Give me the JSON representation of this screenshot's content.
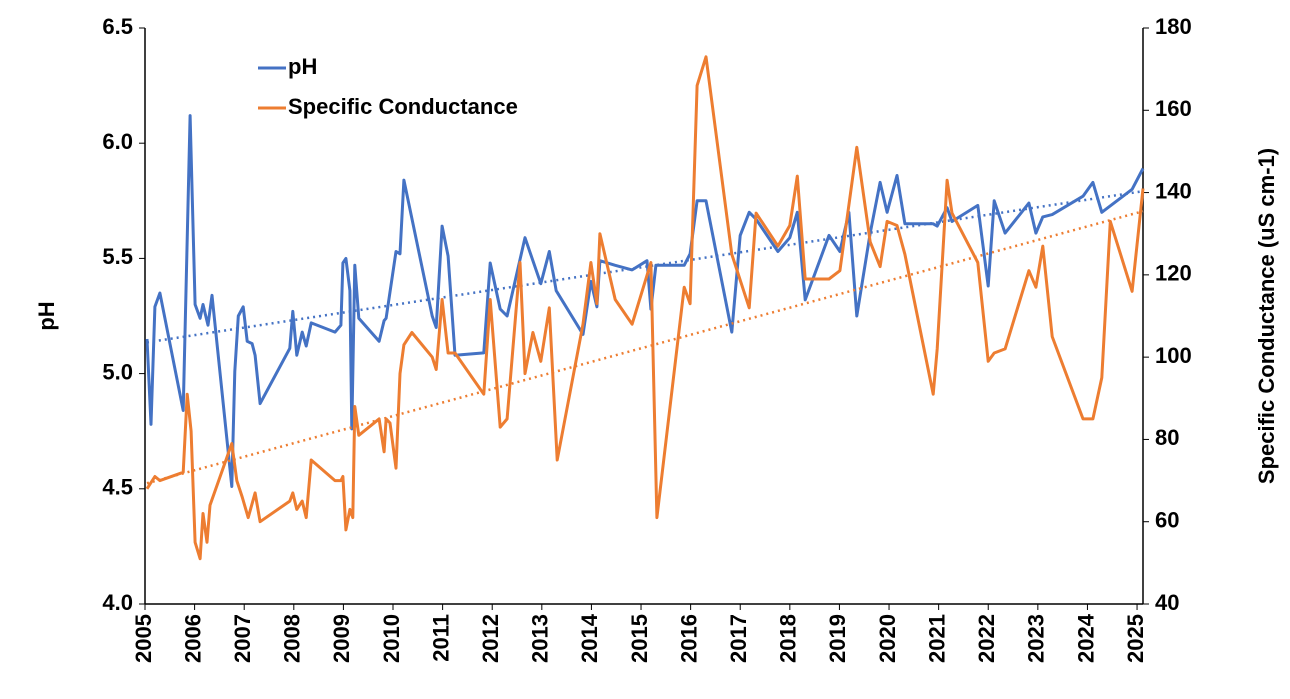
{
  "chart_data": {
    "type": "line",
    "xlim": [
      2005,
      2025.12
    ],
    "xticks": [
      2005,
      2006,
      2007,
      2008,
      2009,
      2010,
      2011,
      2012,
      2013,
      2014,
      2015,
      2016,
      2017,
      2018,
      2019,
      2020,
      2021,
      2022,
      2023,
      2024,
      2025
    ],
    "ylim": [
      4.0,
      6.5
    ],
    "yticks": [
      {
        "value": 4.0,
        "label": "4.0"
      },
      4.5,
      {
        "value": 5.0,
        "label": "5.0"
      },
      5.5,
      {
        "value": 6.0,
        "label": "6.0"
      },
      6.5
    ],
    "y2lim": [
      40,
      180
    ],
    "y2ticks": [
      40,
      60,
      80,
      100,
      120,
      140,
      160,
      180
    ],
    "ylabel": "pH",
    "y2label": "Specific Conductance (uS cm-1)",
    "trendlines": true,
    "legend": "top-left",
    "series": [
      {
        "name": "pH",
        "color": "#4472c4",
        "x": [
          2005.04,
          2005.12,
          2005.2,
          2005.3,
          2005.77,
          2005.91,
          2006.01,
          2006.11,
          2006.17,
          2006.27,
          2006.35,
          2006.75,
          2006.81,
          2006.88,
          2006.98,
          2007.06,
          2007.16,
          2007.22,
          2007.32,
          2007.92,
          2007.98,
          2008.06,
          2008.17,
          2008.25,
          2008.35,
          2008.83,
          2008.95,
          2008.99,
          2009.05,
          2009.13,
          2009.17,
          2009.23,
          2009.31,
          2009.72,
          2009.82,
          2009.86,
          2010.06,
          2010.14,
          2010.22,
          2010.79,
          2010.87,
          2010.99,
          2011.11,
          2011.25,
          2011.83,
          2011.96,
          2012.16,
          2012.3,
          2012.66,
          2012.98,
          2013.15,
          2013.29,
          2013.83,
          2013.99,
          2014.11,
          2014.17,
          2014.48,
          2014.82,
          2015.12,
          2015.2,
          2015.3,
          2015.87,
          2015.99,
          2016.13,
          2016.31,
          2016.83,
          2017.0,
          2017.18,
          2017.32,
          2017.76,
          2018.0,
          2018.15,
          2018.31,
          2018.79,
          2019.01,
          2019.19,
          2019.35,
          2019.62,
          2019.82,
          2019.96,
          2020.16,
          2020.32,
          2020.89,
          2020.97,
          2021.17,
          2021.27,
          2021.79,
          2022.0,
          2022.12,
          2022.34,
          2022.82,
          2022.96,
          2023.1,
          2023.29,
          2023.91,
          2024.11,
          2024.29,
          2024.9,
          2025.12
        ],
        "values": [
          5.15,
          4.78,
          5.29,
          5.35,
          4.84,
          6.12,
          5.3,
          5.24,
          5.3,
          5.21,
          5.34,
          4.51,
          5.01,
          5.25,
          5.29,
          5.14,
          5.13,
          5.08,
          4.87,
          5.11,
          5.27,
          5.08,
          5.18,
          5.12,
          5.22,
          5.18,
          5.21,
          5.48,
          5.5,
          5.36,
          4.76,
          5.47,
          5.24,
          5.14,
          5.23,
          5.24,
          5.53,
          5.52,
          5.84,
          5.25,
          5.2,
          5.64,
          5.51,
          5.08,
          5.09,
          5.48,
          5.28,
          5.25,
          5.59,
          5.39,
          5.53,
          5.36,
          5.17,
          5.4,
          5.29,
          5.49,
          5.47,
          5.45,
          5.49,
          5.28,
          5.47,
          5.47,
          5.52,
          5.75,
          5.75,
          5.18,
          5.6,
          5.7,
          5.67,
          5.53,
          5.59,
          5.7,
          5.32,
          5.6,
          5.53,
          5.7,
          5.25,
          5.61,
          5.83,
          5.7,
          5.86,
          5.65,
          5.65,
          5.64,
          5.72,
          5.66,
          5.73,
          5.38,
          5.75,
          5.61,
          5.74,
          5.61,
          5.68,
          5.69,
          5.77,
          5.83,
          5.7,
          5.8,
          5.89
        ]
      },
      {
        "name": "Specific Conductance",
        "color": "#ed7d31",
        "axis": "y2",
        "x": [
          2005.04,
          2005.2,
          2005.3,
          2005.77,
          2005.85,
          2005.93,
          2006.01,
          2006.11,
          2006.17,
          2006.25,
          2006.31,
          2006.75,
          2006.85,
          2006.96,
          2007.08,
          2007.22,
          2007.32,
          2007.92,
          2007.98,
          2008.06,
          2008.17,
          2008.25,
          2008.35,
          2008.83,
          2008.95,
          2008.99,
          2009.05,
          2009.13,
          2009.19,
          2009.23,
          2009.31,
          2009.72,
          2009.82,
          2009.86,
          2009.94,
          2010.06,
          2010.14,
          2010.22,
          2010.38,
          2010.79,
          2010.87,
          2010.99,
          2011.11,
          2011.25,
          2011.83,
          2011.96,
          2012.16,
          2012.3,
          2012.56,
          2012.66,
          2012.82,
          2012.98,
          2013.15,
          2013.31,
          2013.83,
          2013.99,
          2014.11,
          2014.17,
          2014.48,
          2014.82,
          2015.2,
          2015.32,
          2015.87,
          2015.99,
          2016.13,
          2016.31,
          2016.83,
          2017.18,
          2017.32,
          2017.76,
          2018.0,
          2018.15,
          2018.31,
          2018.79,
          2019.01,
          2019.35,
          2019.62,
          2019.82,
          2019.96,
          2020.16,
          2020.32,
          2020.89,
          2020.97,
          2021.17,
          2021.27,
          2021.79,
          2022.0,
          2022.12,
          2022.34,
          2022.82,
          2022.96,
          2023.1,
          2023.29,
          2023.91,
          2024.11,
          2024.29,
          2024.46,
          2024.9,
          2025.12
        ],
        "values": [
          68,
          71,
          70,
          72,
          91,
          82,
          55,
          51,
          62,
          55,
          64,
          79,
          70,
          66,
          61,
          67,
          60,
          65,
          67,
          63,
          65,
          61,
          75,
          70,
          70,
          71,
          58,
          63,
          61,
          88,
          81,
          85,
          77,
          85,
          84,
          73,
          96,
          103,
          106,
          100,
          97,
          114,
          101,
          101,
          91,
          114,
          83,
          85,
          123,
          96,
          106,
          99,
          112,
          75,
          108,
          123,
          113,
          130,
          114,
          108,
          123,
          61,
          117,
          113,
          166,
          173,
          125,
          112,
          135,
          127,
          132,
          144,
          119,
          119,
          121,
          151,
          128,
          122,
          133,
          132,
          125,
          91,
          102,
          143,
          135,
          123,
          99,
          101,
          102,
          121,
          117,
          127,
          105,
          85,
          85,
          95,
          133,
          116,
          141
        ]
      }
    ]
  }
}
